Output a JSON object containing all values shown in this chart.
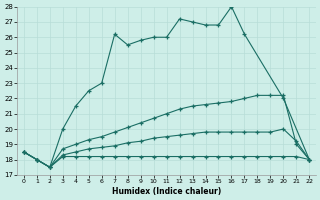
{
  "xlabel": "Humidex (Indice chaleur)",
  "background_color": "#ceeee8",
  "grid_color": "#b8ddd8",
  "line_color": "#1a6e64",
  "ylim": [
    17,
    28
  ],
  "xlim": [
    -0.5,
    22.5
  ],
  "yticks": [
    17,
    18,
    19,
    20,
    21,
    22,
    23,
    24,
    25,
    26,
    27,
    28
  ],
  "xticks": [
    0,
    1,
    2,
    3,
    4,
    5,
    6,
    7,
    8,
    9,
    10,
    11,
    12,
    13,
    14,
    15,
    16,
    17,
    18,
    19,
    20,
    21,
    22
  ],
  "series": [
    {
      "x": [
        0,
        1,
        2,
        3,
        4,
        5,
        6,
        7,
        8,
        9,
        10,
        11,
        12,
        13,
        14,
        15,
        16,
        17,
        20,
        22
      ],
      "y": [
        18.5,
        18.0,
        17.5,
        20.0,
        21.5,
        22.5,
        23.0,
        26.2,
        25.5,
        25.8,
        26.0,
        26.0,
        27.2,
        27.0,
        26.8,
        26.8,
        28.0,
        26.2,
        22.0,
        18.0
      ]
    },
    {
      "x": [
        0,
        1,
        2,
        3,
        4,
        5,
        6,
        7,
        8,
        9,
        10,
        11,
        12,
        13,
        14,
        15,
        16,
        17,
        18,
        19,
        20,
        21,
        22
      ],
      "y": [
        18.5,
        18.0,
        17.5,
        18.7,
        19.0,
        19.3,
        19.5,
        19.8,
        20.1,
        20.4,
        20.7,
        21.0,
        21.3,
        21.5,
        21.6,
        21.7,
        21.8,
        22.0,
        22.2,
        22.2,
        22.2,
        19.0,
        18.0
      ]
    },
    {
      "x": [
        0,
        1,
        2,
        3,
        4,
        5,
        6,
        7,
        8,
        9,
        10,
        11,
        12,
        13,
        14,
        15,
        16,
        17,
        18,
        19,
        20,
        21,
        22
      ],
      "y": [
        18.5,
        18.0,
        17.5,
        18.3,
        18.5,
        18.7,
        18.8,
        18.9,
        19.1,
        19.2,
        19.4,
        19.5,
        19.6,
        19.7,
        19.8,
        19.8,
        19.8,
        19.8,
        19.8,
        19.8,
        20.0,
        19.2,
        18.0
      ]
    },
    {
      "x": [
        0,
        1,
        2,
        3,
        4,
        5,
        6,
        7,
        8,
        9,
        10,
        11,
        12,
        13,
        14,
        15,
        16,
        17,
        18,
        19,
        20,
        21,
        22
      ],
      "y": [
        18.5,
        18.0,
        17.5,
        18.2,
        18.2,
        18.2,
        18.2,
        18.2,
        18.2,
        18.2,
        18.2,
        18.2,
        18.2,
        18.2,
        18.2,
        18.2,
        18.2,
        18.2,
        18.2,
        18.2,
        18.2,
        18.2,
        18.0
      ]
    }
  ]
}
